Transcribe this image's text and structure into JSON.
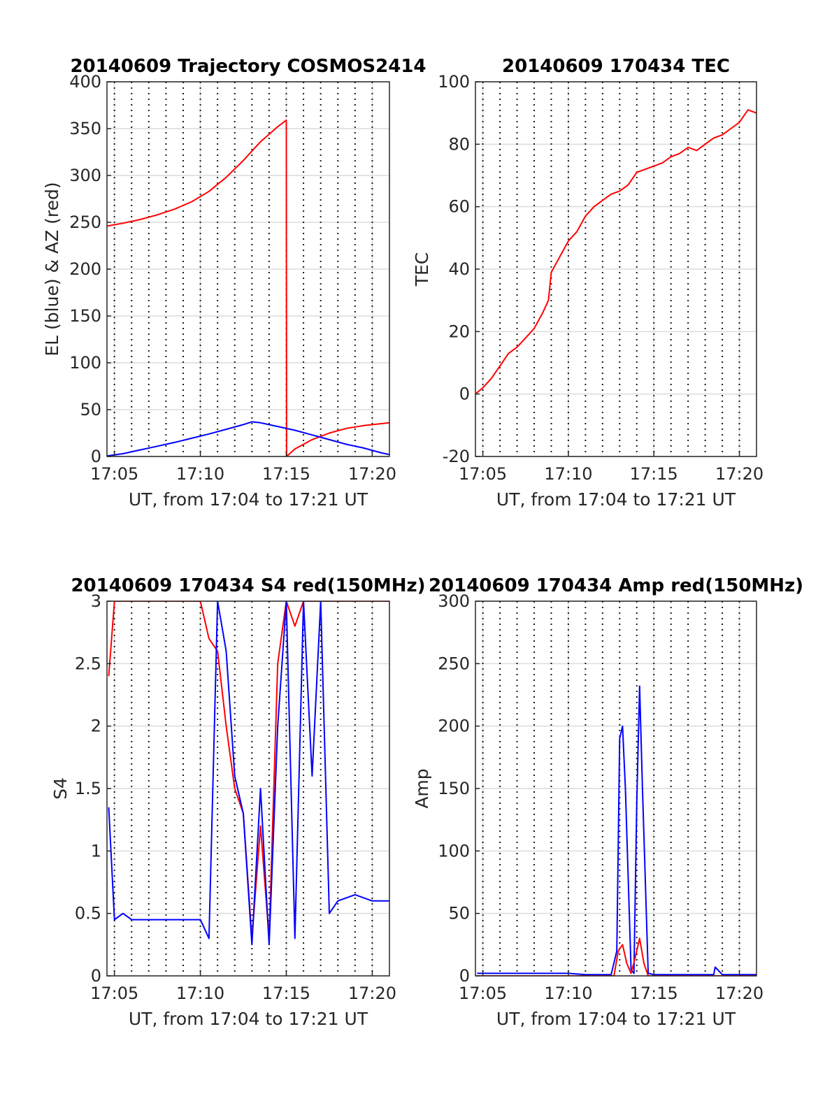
{
  "colors": {
    "el": "#0000ff",
    "az": "#ff0000",
    "red": "#ff0000",
    "blue": "#0000ff",
    "grid": "#dcdcdc"
  },
  "chart_data": [
    {
      "type": "line",
      "title": "20140609 Trajectory COSMOS2414",
      "xlabel": "UT, from 17:04 to 17:21 UT",
      "ylabel": "EL (blue) & AZ (red)",
      "xlim": [
        "17:04:34",
        "17:21:00"
      ],
      "ylim": [
        0,
        400
      ],
      "yticks": [
        0,
        50,
        100,
        150,
        200,
        250,
        300,
        350,
        400
      ],
      "xticks": [
        "17:05",
        "17:10",
        "17:15",
        "17:20"
      ],
      "dotted_x_gridlines": [
        "17:05",
        "17:06",
        "17:07",
        "17:08",
        "17:09",
        "17:10",
        "17:11",
        "17:12",
        "17:13",
        "17:14",
        "17:15",
        "17:16",
        "17:17",
        "17:18",
        "17:19",
        "17:20"
      ],
      "grid": true,
      "series": [
        {
          "color": "red",
          "x": [
            "17:04:34",
            "17:05:30",
            "17:06:30",
            "17:07:30",
            "17:08:30",
            "17:09:30",
            "17:10:30",
            "17:11:30",
            "17:12:30",
            "17:13:30",
            "17:14:30",
            "17:15:00",
            "17:15:01",
            "17:15:30",
            "17:16:30",
            "17:17:30",
            "17:18:30",
            "17:19:30",
            "17:20:30",
            "17:21:00"
          ],
          "values": [
            246,
            249,
            253,
            258,
            264,
            272,
            283,
            298,
            316,
            336,
            352,
            359,
            0,
            8,
            18,
            25,
            30,
            33,
            35,
            36
          ]
        },
        {
          "color": "blue",
          "x": [
            "17:04:34",
            "17:05:30",
            "17:06:30",
            "17:07:30",
            "17:08:30",
            "17:09:30",
            "17:10:30",
            "17:11:30",
            "17:12:30",
            "17:13:00",
            "17:13:30",
            "17:14:30",
            "17:15:30",
            "17:16:30",
            "17:17:30",
            "17:18:30",
            "17:19:30",
            "17:20:30",
            "17:21:00"
          ],
          "values": [
            0.5,
            3,
            7,
            11,
            15,
            19.5,
            24,
            29,
            34,
            37,
            36,
            32,
            28,
            23,
            18,
            13,
            9,
            4,
            2
          ]
        }
      ]
    },
    {
      "type": "line",
      "title": "20140609 170434 TEC",
      "xlabel": "UT, from 17:04 to 17:21 UT",
      "ylabel": "TEC",
      "xlim": [
        "17:04:34",
        "17:21:00"
      ],
      "ylim": [
        -20,
        100
      ],
      "yticks": [
        -20,
        0,
        20,
        40,
        60,
        80,
        100
      ],
      "xticks": [
        "17:05",
        "17:10",
        "17:15",
        "17:20"
      ],
      "dotted_x_gridlines": [
        "17:05",
        "17:06",
        "17:07",
        "17:08",
        "17:09",
        "17:10",
        "17:11",
        "17:12",
        "17:13",
        "17:14",
        "17:15",
        "17:16",
        "17:17",
        "17:18",
        "17:19",
        "17:20"
      ],
      "grid": true,
      "series": [
        {
          "color": "red",
          "x": [
            "17:04:34",
            "17:05:00",
            "17:05:30",
            "17:06:00",
            "17:06:30",
            "17:07:00",
            "17:07:30",
            "17:08:00",
            "17:08:30",
            "17:08:50",
            "17:09:00",
            "17:09:30",
            "17:10:00",
            "17:10:30",
            "17:11:00",
            "17:11:30",
            "17:12:00",
            "17:12:30",
            "17:13:00",
            "17:13:30",
            "17:14:00",
            "17:14:30",
            "17:15:00",
            "17:15:30",
            "17:16:00",
            "17:16:30",
            "17:17:00",
            "17:17:30",
            "17:18:00",
            "17:18:30",
            "17:19:00",
            "17:19:30",
            "17:20:00",
            "17:20:30",
            "17:21:00"
          ],
          "values": [
            0,
            2,
            5,
            9,
            13,
            15,
            18,
            21,
            26,
            30,
            39,
            44,
            49,
            52,
            57,
            60,
            62,
            64,
            65,
            67,
            71,
            72,
            73,
            74,
            76,
            77,
            79,
            78,
            80,
            82,
            83,
            85,
            87,
            91,
            90
          ]
        }
      ]
    },
    {
      "type": "line",
      "title": "20140609 170434 S4 red(150MHz)",
      "xlabel": "UT, from 17:04 to 17:21 UT",
      "ylabel": "S4",
      "xlim": [
        "17:04:34",
        "17:21:00"
      ],
      "ylim": [
        0,
        3
      ],
      "yticks": [
        0,
        0.5,
        1,
        1.5,
        2,
        2.5,
        3
      ],
      "xticks": [
        "17:05",
        "17:10",
        "17:15",
        "17:20"
      ],
      "dotted_x_gridlines": [
        "17:05",
        "17:06",
        "17:07",
        "17:08",
        "17:09",
        "17:10",
        "17:11",
        "17:12",
        "17:13",
        "17:14",
        "17:15",
        "17:16",
        "17:17",
        "17:18",
        "17:19",
        "17:20"
      ],
      "grid": true,
      "series": [
        {
          "color": "red",
          "x": [
            "17:04:40",
            "17:05:00",
            "17:05:30",
            "17:06:00",
            "17:07:00",
            "17:08:00",
            "17:09:00",
            "17:10:00",
            "17:10:30",
            "17:11:00",
            "17:11:30",
            "17:12:00",
            "17:12:30",
            "17:13:00",
            "17:13:30",
            "17:14:00",
            "17:14:30",
            "17:15:00",
            "17:15:30",
            "17:16:00",
            "17:16:30",
            "17:17:00",
            "17:18:00",
            "17:19:00",
            "17:20:00",
            "17:20:59"
          ],
          "values": [
            2.4,
            3,
            3,
            3,
            3,
            3,
            3,
            3,
            2.7,
            2.6,
            2.0,
            1.5,
            1.3,
            0.3,
            1.2,
            0.3,
            2.5,
            3,
            2.8,
            3,
            3,
            3,
            3,
            3,
            3,
            3
          ]
        },
        {
          "color": "blue",
          "x": [
            "17:04:40",
            "17:05:00",
            "17:05:30",
            "17:06:00",
            "17:07:00",
            "17:08:00",
            "17:09:00",
            "17:10:00",
            "17:10:30",
            "17:11:00",
            "17:11:30",
            "17:12:00",
            "17:12:30",
            "17:13:00",
            "17:13:30",
            "17:14:00",
            "17:14:30",
            "17:15:00",
            "17:15:30",
            "17:16:00",
            "17:16:30",
            "17:17:00",
            "17:17:30",
            "17:18:00",
            "17:19:00",
            "17:20:00",
            "17:20:59"
          ],
          "values": [
            1.35,
            0.45,
            0.5,
            0.45,
            0.45,
            0.45,
            0.45,
            0.45,
            0.3,
            3,
            2.6,
            1.6,
            1.3,
            0.25,
            1.5,
            0.25,
            2.0,
            3,
            0.3,
            3,
            1.6,
            3,
            0.5,
            0.6,
            0.65,
            0.6,
            0.6
          ]
        }
      ]
    },
    {
      "type": "line",
      "title": "20140609 170434 Amp red(150MHz)",
      "xlabel": "UT, from 17:04 to 17:21 UT",
      "ylabel": "Amp",
      "xlim": [
        "17:04:34",
        "17:21:00"
      ],
      "ylim": [
        0,
        300
      ],
      "yticks": [
        0,
        50,
        100,
        150,
        200,
        250,
        300
      ],
      "xticks": [
        "17:05",
        "17:10",
        "17:15",
        "17:20"
      ],
      "dotted_x_gridlines": [
        "17:05",
        "17:06",
        "17:07",
        "17:08",
        "17:09",
        "17:10",
        "17:11",
        "17:12",
        "17:13",
        "17:14",
        "17:15",
        "17:16",
        "17:17",
        "17:18",
        "17:19",
        "17:20"
      ],
      "grid": true,
      "series": [
        {
          "color": "blue",
          "x": [
            "17:04:40",
            "17:06:00",
            "17:08:00",
            "17:10:00",
            "17:11:00",
            "17:12:30",
            "17:12:50",
            "17:13:00",
            "17:13:10",
            "17:13:20",
            "17:13:40",
            "17:13:50",
            "17:14:00",
            "17:14:10",
            "17:14:20",
            "17:14:40",
            "17:15:00",
            "17:17:00",
            "17:18:30",
            "17:18:35",
            "17:19:00",
            "17:21:00"
          ],
          "values": [
            2,
            2,
            2,
            2,
            1,
            1,
            20,
            190,
            200,
            150,
            5,
            2,
            140,
            232,
            150,
            2,
            1,
            1,
            1,
            7,
            1,
            1
          ]
        },
        {
          "color": "red",
          "x": [
            "17:04:40",
            "17:12:40",
            "17:12:55",
            "17:13:10",
            "17:13:25",
            "17:13:40",
            "17:13:55",
            "17:14:10",
            "17:14:25",
            "17:14:40",
            "17:21:00"
          ],
          "values": [
            0,
            0,
            20,
            25,
            10,
            2,
            15,
            30,
            10,
            0,
            0
          ]
        }
      ]
    }
  ]
}
